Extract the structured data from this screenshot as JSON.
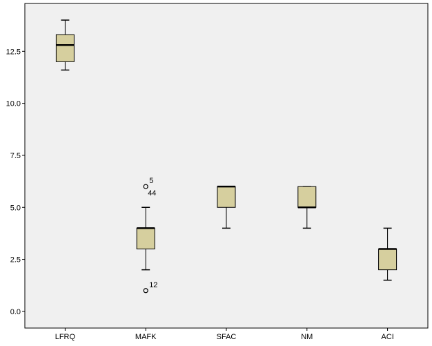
{
  "chart_data": {
    "type": "boxplot",
    "title": "",
    "xlabel": "",
    "ylabel": "",
    "ylim": [
      -0.8,
      14.8
    ],
    "yticks": [
      0.0,
      2.5,
      5.0,
      7.5,
      10.0,
      12.5
    ],
    "ytick_labels": [
      "0.0",
      "2.5",
      "5.0",
      "7.5",
      "10.0",
      "12.5"
    ],
    "grid": false,
    "colors": {
      "plot_bg": "#f0f0f0",
      "box_fill": "#d6cf9e",
      "stroke": "#000000"
    },
    "categories": [
      "LFRQ",
      "MAFK",
      "SFAC",
      "NM",
      "ACI"
    ],
    "boxes": [
      {
        "label": "LFRQ",
        "min": 11.6,
        "q1": 12.0,
        "median": 12.8,
        "q3": 13.3,
        "max": 14.0,
        "outliers": []
      },
      {
        "label": "MAFK",
        "min": 2.0,
        "q1": 3.0,
        "median": 4.0,
        "q3": 4.0,
        "max": 5.0,
        "outliers": [
          {
            "value": 6.0,
            "label": "5"
          },
          {
            "value": 6.0,
            "label": "44"
          },
          {
            "value": 1.0,
            "label": "12"
          }
        ]
      },
      {
        "label": "SFAC",
        "min": 4.0,
        "q1": 5.0,
        "median": 6.0,
        "q3": 6.0,
        "max": 6.0,
        "outliers": []
      },
      {
        "label": "NM",
        "min": 4.0,
        "q1": 5.0,
        "median": 5.0,
        "q3": 6.0,
        "max": 6.0,
        "outliers": []
      },
      {
        "label": "ACI",
        "min": 1.5,
        "q1": 2.0,
        "median": 3.0,
        "q3": 3.0,
        "max": 4.0,
        "outliers": []
      }
    ]
  }
}
